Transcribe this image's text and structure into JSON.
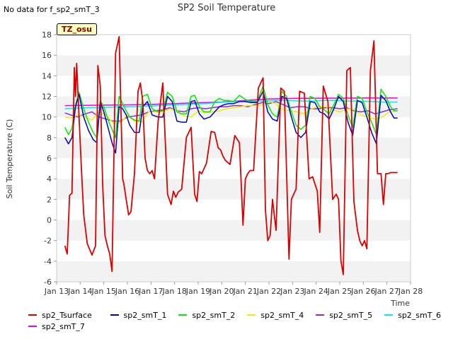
{
  "header": {
    "no_data_note": "No data for f_sp2_smT_3",
    "tz_badge": "TZ_osu"
  },
  "chart_data": {
    "type": "line",
    "title": "SP2 Soil Temperature",
    "xlabel": "Time",
    "ylabel": "Soil Temperature (C)",
    "ylim": [
      -6,
      18
    ],
    "yticks": [
      -6,
      -4,
      -2,
      0,
      2,
      4,
      6,
      8,
      10,
      12,
      14,
      16,
      18
    ],
    "xlim": [
      13,
      28
    ],
    "xticks": [
      {
        "v": 13,
        "label": "Jan 13"
      },
      {
        "v": 14,
        "label": "Jan 14"
      },
      {
        "v": 15,
        "label": "Jan 15"
      },
      {
        "v": 16,
        "label": "Jan 16"
      },
      {
        "v": 17,
        "label": "Jan 17"
      },
      {
        "v": 18,
        "label": "Jan 18"
      },
      {
        "v": 19,
        "label": "Jan 19"
      },
      {
        "v": 20,
        "label": "Jan 20"
      },
      {
        "v": 21,
        "label": "Jan 21"
      },
      {
        "v": 22,
        "label": "Jan 22"
      },
      {
        "v": 23,
        "label": "Jan 23"
      },
      {
        "v": 24,
        "label": "Jan 24"
      },
      {
        "v": 25,
        "label": "Jan 25"
      },
      {
        "v": 26,
        "label": "Jan 26"
      },
      {
        "v": 27,
        "label": "Jan 27"
      },
      {
        "v": 28,
        "label": "Jan 28"
      }
    ],
    "grid": "horizontal bands",
    "legend_position": "bottom",
    "series": [
      {
        "name": "sp2_Tsurface",
        "color": "#dd0000",
        "x": [
          13.35,
          13.45,
          13.55,
          13.65,
          13.75,
          13.8,
          13.85,
          13.95,
          14.05,
          14.15,
          14.3,
          14.5,
          14.65,
          14.75,
          14.85,
          14.95,
          15.05,
          15.15,
          15.25,
          15.35,
          15.5,
          15.65,
          15.8,
          15.85,
          15.95,
          16.05,
          16.15,
          16.3,
          16.45,
          16.55,
          16.65,
          16.75,
          16.85,
          16.95,
          17.05,
          17.15,
          17.3,
          17.5,
          17.7,
          17.85,
          17.95,
          18.05,
          18.15,
          18.3,
          18.5,
          18.7,
          18.85,
          18.95,
          19.05,
          19.15,
          19.35,
          19.55,
          19.7,
          19.85,
          19.95,
          20.05,
          20.15,
          20.35,
          20.55,
          20.75,
          20.9,
          21.0,
          21.1,
          21.2,
          21.35,
          21.55,
          21.75,
          21.85,
          21.95,
          22.05,
          22.15,
          22.3,
          22.5,
          22.65,
          22.85,
          22.95,
          23.05,
          23.15,
          23.3,
          23.5,
          23.7,
          23.85,
          23.95,
          24.05,
          24.15,
          24.3,
          24.5,
          24.7,
          24.85,
          24.95,
          25.05,
          25.15,
          25.3,
          25.45,
          25.6,
          25.75,
          25.85,
          25.95,
          26.05,
          26.15,
          26.3,
          26.45,
          26.6,
          26.75,
          26.85,
          26.95,
          27.05,
          27.15,
          27.3,
          27.45
        ],
        "y": [
          -2.5,
          -3.3,
          2.4,
          2.6,
          14.8,
          12.0,
          15.2,
          10.0,
          5.0,
          0.5,
          -2.3,
          -3.4,
          -2.5,
          15.0,
          13.0,
          3.5,
          -1.5,
          -2.5,
          -3.3,
          -5.0,
          16.2,
          17.8,
          4.0,
          3.5,
          2.0,
          0.5,
          0.8,
          4.5,
          12.5,
          13.3,
          11.5,
          6.0,
          4.8,
          4.5,
          4.8,
          4.0,
          9.5,
          13.3,
          2.5,
          1.5,
          2.8,
          2.2,
          2.7,
          3.0,
          8.0,
          9.0,
          2.5,
          1.8,
          4.7,
          4.5,
          5.5,
          8.6,
          8.5,
          7.0,
          6.8,
          6.2,
          5.8,
          5.4,
          8.2,
          7.5,
          -0.5,
          4.0,
          4.5,
          4.8,
          4.8,
          12.8,
          13.8,
          1.0,
          -2.0,
          -1.5,
          2.0,
          -1.0,
          12.8,
          12.5,
          -3.8,
          2.0,
          2.5,
          3.0,
          12.5,
          12.3,
          4.0,
          4.2,
          3.5,
          2.8,
          -1.2,
          13.0,
          11.5,
          2.0,
          2.5,
          2.0,
          -4.0,
          -5.3,
          14.5,
          14.8,
          1.8,
          -1.0,
          -2.0,
          -2.5,
          -2.0,
          -2.8,
          14.5,
          17.4,
          4.5,
          4.5,
          1.5,
          4.5,
          4.5,
          4.6,
          4.6,
          4.6
        ]
      },
      {
        "name": "sp2_smT_1",
        "color": "#0000cc",
        "x": [
          13.35,
          13.5,
          13.65,
          13.8,
          13.95,
          14.15,
          14.35,
          14.55,
          14.7,
          14.85,
          15.0,
          15.2,
          15.35,
          15.5,
          15.65,
          15.8,
          15.95,
          16.1,
          16.3,
          16.5,
          16.65,
          16.85,
          17.05,
          17.3,
          17.5,
          17.7,
          17.9,
          18.1,
          18.3,
          18.5,
          18.7,
          18.85,
          19.05,
          19.25,
          19.5,
          19.7,
          19.9,
          20.1,
          20.3,
          20.5,
          20.75,
          21.0,
          21.25,
          21.5,
          21.75,
          21.95,
          22.15,
          22.35,
          22.55,
          22.75,
          22.95,
          23.15,
          23.35,
          23.55,
          23.75,
          23.95,
          24.15,
          24.35,
          24.55,
          24.75,
          24.95,
          25.15,
          25.35,
          25.55,
          25.75,
          25.95,
          26.15,
          26.35,
          26.55,
          26.75,
          26.95,
          27.15,
          27.3,
          27.45
        ],
        "y": [
          8.0,
          7.4,
          8.0,
          11.0,
          12.2,
          10.0,
          8.7,
          7.8,
          7.5,
          11.5,
          10.5,
          8.8,
          7.5,
          6.5,
          11.0,
          10.8,
          10.2,
          9.2,
          8.5,
          8.5,
          11.0,
          11.5,
          10.2,
          10.0,
          10.0,
          12.0,
          11.5,
          9.6,
          9.5,
          9.5,
          11.5,
          11.6,
          10.3,
          9.8,
          10.0,
          10.5,
          11.0,
          11.2,
          11.3,
          11.3,
          11.5,
          11.5,
          11.4,
          11.4,
          12.5,
          10.5,
          9.8,
          9.6,
          12.0,
          11.8,
          10.0,
          8.5,
          8.0,
          8.5,
          11.5,
          11.4,
          10.5,
          10.3,
          9.8,
          10.8,
          12.0,
          11.5,
          9.5,
          8.2,
          11.6,
          11.4,
          10.0,
          8.5,
          7.4,
          12.1,
          11.6,
          10.5,
          9.9,
          9.9
        ]
      },
      {
        "name": "sp2_smT_2",
        "color": "#00ee00",
        "x": [
          13.35,
          13.5,
          13.65,
          13.8,
          13.95,
          14.15,
          14.35,
          14.55,
          14.7,
          14.85,
          15.0,
          15.2,
          15.35,
          15.5,
          15.65,
          15.8,
          15.95,
          16.1,
          16.3,
          16.5,
          16.65,
          16.85,
          17.05,
          17.3,
          17.5,
          17.7,
          17.9,
          18.1,
          18.3,
          18.5,
          18.7,
          18.85,
          19.05,
          19.25,
          19.5,
          19.7,
          19.9,
          20.1,
          20.3,
          20.5,
          20.75,
          21.0,
          21.25,
          21.5,
          21.75,
          21.95,
          22.15,
          22.35,
          22.55,
          22.75,
          22.95,
          23.15,
          23.35,
          23.55,
          23.75,
          23.95,
          24.15,
          24.35,
          24.55,
          24.75,
          24.95,
          25.15,
          25.35,
          25.55,
          25.75,
          25.95,
          26.15,
          26.35,
          26.55,
          26.75,
          26.95,
          27.15,
          27.3,
          27.45
        ],
        "y": [
          9.0,
          8.3,
          8.9,
          11.2,
          12.4,
          10.8,
          9.5,
          8.5,
          8.0,
          11.6,
          11.0,
          9.6,
          8.8,
          8.0,
          12.0,
          11.3,
          10.6,
          10.0,
          9.7,
          9.6,
          12.0,
          12.2,
          10.8,
          10.5,
          10.6,
          12.4,
          12.0,
          10.5,
          10.3,
          10.3,
          12.0,
          12.1,
          11.0,
          10.5,
          10.5,
          11.5,
          11.8,
          11.6,
          11.6,
          11.5,
          12.1,
          11.7,
          11.5,
          11.5,
          13.0,
          11.2,
          10.3,
          10.0,
          12.5,
          12.0,
          10.5,
          9.2,
          8.8,
          9.2,
          12.0,
          11.8,
          11.0,
          10.7,
          10.3,
          11.2,
          12.2,
          11.8,
          10.2,
          9.0,
          12.0,
          11.8,
          10.5,
          9.5,
          8.3,
          12.7,
          12.0,
          11.0,
          10.6,
          10.6
        ]
      },
      {
        "name": "sp2_smT_4",
        "color": "#eeee00",
        "x": [
          13.35,
          13.6,
          13.9,
          14.2,
          14.5,
          14.8,
          15.1,
          15.4,
          15.7,
          16.0,
          16.3,
          16.6,
          16.9,
          17.2,
          17.5,
          17.8,
          18.1,
          18.4,
          18.7,
          19.0,
          19.3,
          19.6,
          19.9,
          20.2,
          20.5,
          20.8,
          21.1,
          21.4,
          21.7,
          22.0,
          22.3,
          22.6,
          22.9,
          23.2,
          23.5,
          23.8,
          24.1,
          24.4,
          24.7,
          25.0,
          25.3,
          25.6,
          25.9,
          26.2,
          26.5,
          26.8,
          27.1,
          27.45
        ],
        "y": [
          10.0,
          9.9,
          10.2,
          10.0,
          9.7,
          10.5,
          10.2,
          9.4,
          9.4,
          10.2,
          9.6,
          9.5,
          10.5,
          10.5,
          10.5,
          10.8,
          10.6,
          10.1,
          10.0,
          10.6,
          10.4,
          10.5,
          10.6,
          10.8,
          10.9,
          11.0,
          11.1,
          11.1,
          11.2,
          11.5,
          11.3,
          10.7,
          10.6,
          10.5,
          10.3,
          10.8,
          11.0,
          11.0,
          10.7,
          10.5,
          10.8,
          10.7,
          10.2,
          10.0,
          9.8,
          10.0,
          10.5,
          10.6
        ]
      },
      {
        "name": "sp2_smT_5",
        "color": "#8a2be2",
        "x": [
          13.35,
          13.6,
          13.9,
          14.2,
          14.5,
          14.8,
          15.1,
          15.4,
          15.7,
          16.0,
          16.3,
          16.6,
          16.9,
          17.2,
          17.5,
          17.8,
          18.1,
          18.4,
          18.7,
          19.0,
          19.3,
          19.6,
          19.9,
          20.2,
          20.5,
          20.8,
          21.1,
          21.4,
          21.7,
          22.0,
          22.3,
          22.6,
          22.9,
          23.2,
          23.5,
          23.8,
          24.1,
          24.4,
          24.7,
          25.0,
          25.3,
          25.6,
          25.9,
          26.2,
          26.5,
          26.8,
          27.1,
          27.45
        ],
        "y": [
          10.4,
          10.2,
          10.0,
          10.3,
          10.5,
          10.0,
          9.8,
          9.6,
          9.6,
          10.0,
          10.1,
          10.2,
          10.5,
          10.6,
          10.7,
          10.9,
          10.6,
          10.5,
          10.8,
          10.9,
          10.8,
          10.9,
          11.0,
          11.0,
          11.1,
          11.1,
          11.0,
          11.2,
          11.4,
          11.3,
          11.5,
          11.2,
          10.9,
          11.0,
          11.0,
          10.8,
          10.8,
          10.9,
          10.9,
          10.8,
          10.9,
          10.6,
          10.5,
          10.6,
          10.3,
          10.5,
          10.7,
          10.8
        ]
      },
      {
        "name": "sp2_smT_6",
        "color": "#00eeee",
        "x": [
          13.35,
          13.8,
          14.3,
          14.8,
          15.3,
          15.8,
          16.3,
          16.8,
          17.3,
          17.8,
          18.3,
          18.8,
          19.3,
          19.8,
          20.3,
          20.8,
          21.3,
          21.8,
          22.3,
          22.8,
          23.3,
          23.8,
          24.3,
          24.8,
          25.3,
          25.8,
          26.3,
          26.8,
          27.45
        ],
        "y": [
          10.8,
          10.85,
          10.9,
          10.9,
          10.95,
          11.0,
          11.0,
          11.05,
          11.1,
          11.15,
          11.2,
          11.25,
          11.3,
          11.4,
          11.45,
          11.5,
          11.55,
          11.55,
          11.6,
          11.6,
          11.55,
          11.55,
          11.6,
          11.6,
          11.55,
          11.55,
          11.5,
          11.45,
          11.45
        ]
      },
      {
        "name": "sp2_smT_7",
        "color": "#ee00ee",
        "x": [
          13.35,
          14.0,
          15.0,
          16.0,
          17.0,
          18.0,
          19.0,
          20.0,
          21.0,
          22.0,
          23.0,
          24.0,
          25.0,
          26.0,
          27.0,
          27.45
        ],
        "y": [
          11.1,
          11.12,
          11.15,
          11.18,
          11.22,
          11.3,
          11.38,
          11.45,
          11.6,
          11.75,
          11.8,
          11.82,
          11.83,
          11.84,
          11.85,
          11.85
        ]
      }
    ]
  }
}
